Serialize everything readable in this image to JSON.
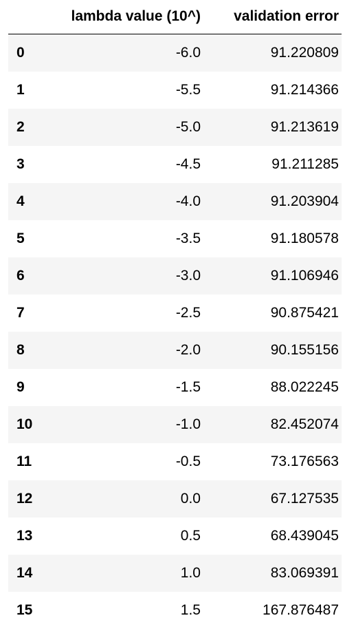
{
  "table": {
    "columns": [
      "",
      "lambda value (10^)",
      "validation error"
    ],
    "rows": [
      {
        "index": "0",
        "lambda": "-6.0",
        "error": "91.220809"
      },
      {
        "index": "1",
        "lambda": "-5.5",
        "error": "91.214366"
      },
      {
        "index": "2",
        "lambda": "-5.0",
        "error": "91.213619"
      },
      {
        "index": "3",
        "lambda": "-4.5",
        "error": "91.211285"
      },
      {
        "index": "4",
        "lambda": "-4.0",
        "error": "91.203904"
      },
      {
        "index": "5",
        "lambda": "-3.5",
        "error": "91.180578"
      },
      {
        "index": "6",
        "lambda": "-3.0",
        "error": "91.106946"
      },
      {
        "index": "7",
        "lambda": "-2.5",
        "error": "90.875421"
      },
      {
        "index": "8",
        "lambda": "-2.0",
        "error": "90.155156"
      },
      {
        "index": "9",
        "lambda": "-1.5",
        "error": "88.022245"
      },
      {
        "index": "10",
        "lambda": "-1.0",
        "error": "82.452074"
      },
      {
        "index": "11",
        "lambda": "-0.5",
        "error": "73.176563"
      },
      {
        "index": "12",
        "lambda": "0.0",
        "error": "67.127535"
      },
      {
        "index": "13",
        "lambda": "0.5",
        "error": "68.439045"
      },
      {
        "index": "14",
        "lambda": "1.0",
        "error": "83.069391"
      },
      {
        "index": "15",
        "lambda": "1.5",
        "error": "167.876487"
      }
    ]
  },
  "colors": {
    "stripe": "#f5f5f5",
    "text": "#000000",
    "header_border": "#000000"
  }
}
